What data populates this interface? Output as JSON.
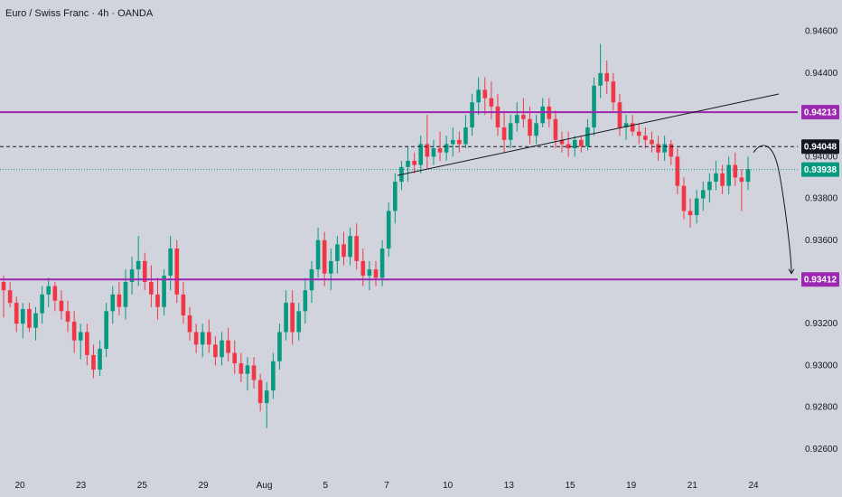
{
  "chart_data": {
    "type": "candlestick",
    "title": "Euro / Swiss Franc · 4h · OANDA",
    "ylim": [
      0.925,
      0.9475
    ],
    "y_ticks": [
      "0.94600",
      "0.94400",
      "0.94000",
      "0.93800",
      "0.93600",
      "0.93200",
      "0.93000",
      "0.92800",
      "0.92600"
    ],
    "x_ticks": [
      "20",
      "23",
      "25",
      "29",
      "Aug",
      "5",
      "7",
      "10",
      "13",
      "15",
      "19",
      "21",
      "24"
    ],
    "horizontal_levels": [
      {
        "value": 0.94213,
        "label": "0.94213",
        "style": "solid",
        "color": "#9c27b0"
      },
      {
        "value": 0.93412,
        "label": "0.93412",
        "style": "solid",
        "color": "#9c27b0"
      },
      {
        "value": 0.94048,
        "label": "0.94048",
        "style": "dashed",
        "color": "#131722"
      },
      {
        "value": 0.93938,
        "label": "0.93938",
        "style": "dotted",
        "color": "#089981"
      }
    ],
    "trendline": {
      "from": [
        0,
        0.9391
      ],
      "to": [
        1,
        0.943
      ]
    },
    "projection": {
      "from": 0.9402,
      "to": 0.9344
    },
    "colors": {
      "up": "#089981",
      "down": "#f23645",
      "bg": "#d1d4dc",
      "level": "#9c27b0",
      "current": "#089981"
    },
    "candles": [
      [
        0.934,
        0.9343,
        0.9323,
        0.9336
      ],
      [
        0.9336,
        0.934,
        0.9328,
        0.933
      ],
      [
        0.933,
        0.9333,
        0.9316,
        0.932
      ],
      [
        0.932,
        0.933,
        0.9313,
        0.9327
      ],
      [
        0.9327,
        0.933,
        0.9316,
        0.9318
      ],
      [
        0.9318,
        0.9328,
        0.9312,
        0.9325
      ],
      [
        0.9325,
        0.9338,
        0.932,
        0.9334
      ],
      [
        0.9334,
        0.9342,
        0.9328,
        0.9338
      ],
      [
        0.9338,
        0.934,
        0.9326,
        0.9331
      ],
      [
        0.9331,
        0.9336,
        0.9322,
        0.9326
      ],
      [
        0.9326,
        0.9331,
        0.9316,
        0.9321
      ],
      [
        0.9321,
        0.9326,
        0.9306,
        0.9312
      ],
      [
        0.9312,
        0.932,
        0.9303,
        0.9316
      ],
      [
        0.9316,
        0.932,
        0.93,
        0.9305
      ],
      [
        0.9305,
        0.931,
        0.9294,
        0.9298
      ],
      [
        0.9298,
        0.9312,
        0.9295,
        0.9308
      ],
      [
        0.9308,
        0.933,
        0.9304,
        0.9326
      ],
      [
        0.9326,
        0.9338,
        0.932,
        0.9334
      ],
      [
        0.9334,
        0.934,
        0.9324,
        0.9328
      ],
      [
        0.9328,
        0.9346,
        0.9322,
        0.934
      ],
      [
        0.934,
        0.9352,
        0.9334,
        0.9346
      ],
      [
        0.9346,
        0.9362,
        0.9338,
        0.935
      ],
      [
        0.935,
        0.9354,
        0.9336,
        0.934
      ],
      [
        0.934,
        0.9348,
        0.9328,
        0.9334
      ],
      [
        0.9334,
        0.9342,
        0.9322,
        0.9328
      ],
      [
        0.9328,
        0.9346,
        0.9324,
        0.9343
      ],
      [
        0.9343,
        0.9362,
        0.9336,
        0.9356
      ],
      [
        0.9356,
        0.936,
        0.933,
        0.9334
      ],
      [
        0.9334,
        0.934,
        0.932,
        0.9324
      ],
      [
        0.9324,
        0.9328,
        0.9312,
        0.9316
      ],
      [
        0.9316,
        0.932,
        0.9306,
        0.931
      ],
      [
        0.931,
        0.932,
        0.9304,
        0.9316
      ],
      [
        0.9316,
        0.9322,
        0.9306,
        0.931
      ],
      [
        0.931,
        0.9314,
        0.93,
        0.9304
      ],
      [
        0.9304,
        0.9316,
        0.93,
        0.9312
      ],
      [
        0.9312,
        0.9318,
        0.9302,
        0.9306
      ],
      [
        0.9306,
        0.9312,
        0.9296,
        0.9301
      ],
      [
        0.9301,
        0.9306,
        0.9292,
        0.9296
      ],
      [
        0.9296,
        0.9304,
        0.9288,
        0.93
      ],
      [
        0.93,
        0.9304,
        0.9289,
        0.9293
      ],
      [
        0.9293,
        0.9296,
        0.9278,
        0.9282
      ],
      [
        0.9282,
        0.9292,
        0.927,
        0.9288
      ],
      [
        0.9288,
        0.9306,
        0.9284,
        0.9302
      ],
      [
        0.9302,
        0.932,
        0.9298,
        0.9316
      ],
      [
        0.9316,
        0.9336,
        0.9312,
        0.933
      ],
      [
        0.933,
        0.9336,
        0.931,
        0.9316
      ],
      [
        0.9316,
        0.933,
        0.9312,
        0.9326
      ],
      [
        0.9326,
        0.9342,
        0.932,
        0.9336
      ],
      [
        0.9336,
        0.935,
        0.933,
        0.9346
      ],
      [
        0.9346,
        0.9366,
        0.9342,
        0.936
      ],
      [
        0.936,
        0.9364,
        0.9338,
        0.9344
      ],
      [
        0.9344,
        0.9356,
        0.9336,
        0.935
      ],
      [
        0.935,
        0.9362,
        0.9344,
        0.9358
      ],
      [
        0.9358,
        0.9364,
        0.9348,
        0.9352
      ],
      [
        0.9352,
        0.9366,
        0.9348,
        0.9362
      ],
      [
        0.9362,
        0.9368,
        0.9346,
        0.935
      ],
      [
        0.935,
        0.9356,
        0.9338,
        0.9343
      ],
      [
        0.9343,
        0.935,
        0.9336,
        0.9346
      ],
      [
        0.9346,
        0.935,
        0.9338,
        0.9342
      ],
      [
        0.9342,
        0.936,
        0.9338,
        0.9356
      ],
      [
        0.9356,
        0.9378,
        0.9352,
        0.9374
      ],
      [
        0.9374,
        0.9392,
        0.9368,
        0.9388
      ],
      [
        0.9388,
        0.9398,
        0.9384,
        0.9395
      ],
      [
        0.9395,
        0.9405,
        0.9388,
        0.9398
      ],
      [
        0.9398,
        0.9402,
        0.9392,
        0.9396
      ],
      [
        0.9396,
        0.941,
        0.9392,
        0.9406
      ],
      [
        0.9406,
        0.942,
        0.9394,
        0.94
      ],
      [
        0.94,
        0.9408,
        0.9396,
        0.9404
      ],
      [
        0.9404,
        0.9412,
        0.9398,
        0.9402
      ],
      [
        0.9402,
        0.941,
        0.9398,
        0.9406
      ],
      [
        0.9406,
        0.9414,
        0.94,
        0.9408
      ],
      [
        0.9408,
        0.9412,
        0.9402,
        0.9406
      ],
      [
        0.9406,
        0.942,
        0.9404,
        0.9414
      ],
      [
        0.9414,
        0.943,
        0.941,
        0.9426
      ],
      [
        0.9426,
        0.9438,
        0.942,
        0.9432
      ],
      [
        0.9432,
        0.9438,
        0.942,
        0.9428
      ],
      [
        0.9428,
        0.9436,
        0.9418,
        0.9424
      ],
      [
        0.9424,
        0.943,
        0.941,
        0.9414
      ],
      [
        0.9414,
        0.9422,
        0.9402,
        0.9408
      ],
      [
        0.9408,
        0.942,
        0.9404,
        0.9416
      ],
      [
        0.9416,
        0.9426,
        0.9412,
        0.942
      ],
      [
        0.942,
        0.9428,
        0.9414,
        0.9418
      ],
      [
        0.9418,
        0.9424,
        0.9406,
        0.941
      ],
      [
        0.941,
        0.942,
        0.9406,
        0.9416
      ],
      [
        0.9416,
        0.9428,
        0.9414,
        0.9424
      ],
      [
        0.9424,
        0.9428,
        0.9414,
        0.9418
      ],
      [
        0.9418,
        0.9422,
        0.9404,
        0.9408
      ],
      [
        0.9408,
        0.9412,
        0.9402,
        0.9406
      ],
      [
        0.9406,
        0.9412,
        0.94,
        0.9404
      ],
      [
        0.9404,
        0.941,
        0.94,
        0.9408
      ],
      [
        0.9408,
        0.941,
        0.9402,
        0.9405
      ],
      [
        0.9405,
        0.9418,
        0.9403,
        0.9414
      ],
      [
        0.9414,
        0.9438,
        0.941,
        0.9434
      ],
      [
        0.9434,
        0.9454,
        0.9428,
        0.944
      ],
      [
        0.944,
        0.9446,
        0.943,
        0.9436
      ],
      [
        0.9436,
        0.944,
        0.9422,
        0.9426
      ],
      [
        0.9426,
        0.943,
        0.941,
        0.9414
      ],
      [
        0.9414,
        0.942,
        0.9408,
        0.9416
      ],
      [
        0.9416,
        0.942,
        0.941,
        0.9412
      ],
      [
        0.9412,
        0.9416,
        0.9406,
        0.941
      ],
      [
        0.941,
        0.9414,
        0.9404,
        0.9408
      ],
      [
        0.9408,
        0.9412,
        0.9402,
        0.9406
      ],
      [
        0.9406,
        0.941,
        0.9398,
        0.9402
      ],
      [
        0.9402,
        0.941,
        0.9398,
        0.9406
      ],
      [
        0.9406,
        0.9408,
        0.9396,
        0.94
      ],
      [
        0.94,
        0.9404,
        0.9382,
        0.9386
      ],
      [
        0.9386,
        0.939,
        0.937,
        0.9374
      ],
      [
        0.9374,
        0.938,
        0.9366,
        0.9372
      ],
      [
        0.9372,
        0.9384,
        0.9368,
        0.938
      ],
      [
        0.938,
        0.9388,
        0.9374,
        0.9384
      ],
      [
        0.9384,
        0.9392,
        0.9378,
        0.9388
      ],
      [
        0.9388,
        0.9398,
        0.9384,
        0.9392
      ],
      [
        0.9392,
        0.9396,
        0.9382,
        0.9386
      ],
      [
        0.9386,
        0.94,
        0.9382,
        0.9396
      ],
      [
        0.9396,
        0.9402,
        0.9386,
        0.939
      ],
      [
        0.939,
        0.9394,
        0.9374,
        0.9388
      ],
      [
        0.9388,
        0.94,
        0.9384,
        0.9394
      ]
    ]
  }
}
